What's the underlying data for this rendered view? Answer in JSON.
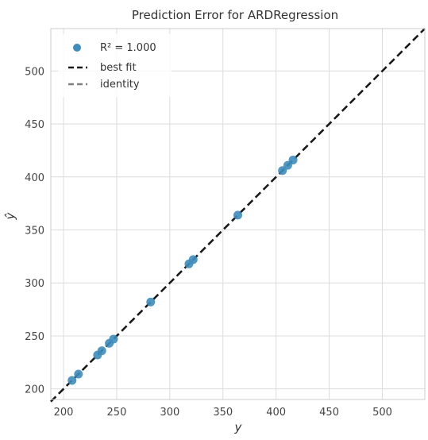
{
  "chart_data": {
    "type": "scatter",
    "title": "Prediction Error for ARDRegression",
    "xlabel": "y",
    "ylabel": "ŷ",
    "xlim": [
      188,
      540
    ],
    "ylim": [
      190,
      540
    ],
    "x_ticks": [
      200,
      250,
      300,
      350,
      400,
      450,
      500
    ],
    "y_ticks": [
      200,
      250,
      300,
      350,
      400,
      450,
      500
    ],
    "grid": true,
    "legend_position": "top-left",
    "legend": [
      {
        "label": "R² = 1.000",
        "kind": "marker"
      },
      {
        "label": "best fit",
        "kind": "dashed-line"
      },
      {
        "label": "identity",
        "kind": "dashed-line"
      }
    ],
    "series": [
      {
        "name": "R² = 1.000",
        "x": [
          208,
          214,
          232,
          236,
          243,
          247,
          282,
          318,
          322,
          364,
          406,
          411,
          416
        ],
        "y": [
          208,
          214,
          232,
          236,
          243,
          247,
          282,
          318,
          322,
          364,
          406,
          411,
          416
        ]
      }
    ],
    "best_fit": {
      "x": [
        188,
        540
      ],
      "y": [
        188,
        540
      ]
    },
    "identity": {
      "x": [
        188,
        540
      ],
      "y": [
        188,
        540
      ]
    },
    "colors": {
      "points": "#3c8dbc",
      "best_fit": "#1a1a1a",
      "identity": "#808080",
      "grid": "#dcdcdc",
      "frame": "#cccccc"
    }
  }
}
